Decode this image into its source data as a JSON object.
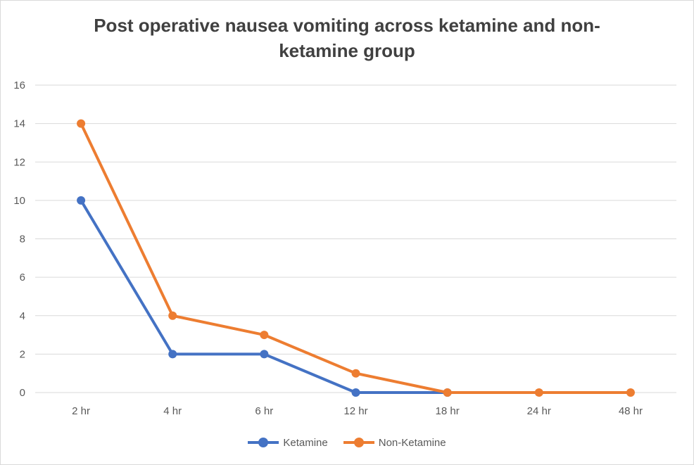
{
  "chart_data": {
    "type": "line",
    "title": "Post operative nausea vomiting across ketamine and non-ketamine group",
    "categories": [
      "2 hr",
      "4 hr",
      "6 hr",
      "12 hr",
      "18 hr",
      "24 hr",
      "48 hr"
    ],
    "series": [
      {
        "name": "Ketamine",
        "color": "#4472c4",
        "values": [
          10,
          2,
          2,
          0,
          0,
          null,
          null
        ]
      },
      {
        "name": "Non-Ketamine",
        "color": "#ed7d31",
        "values": [
          14,
          4,
          3,
          1,
          0,
          0,
          0
        ]
      }
    ],
    "ylim": [
      0,
      16
    ],
    "yticks": [
      0,
      2,
      4,
      6,
      8,
      10,
      12,
      14,
      16
    ],
    "grid": true,
    "legend_position": "bottom"
  }
}
